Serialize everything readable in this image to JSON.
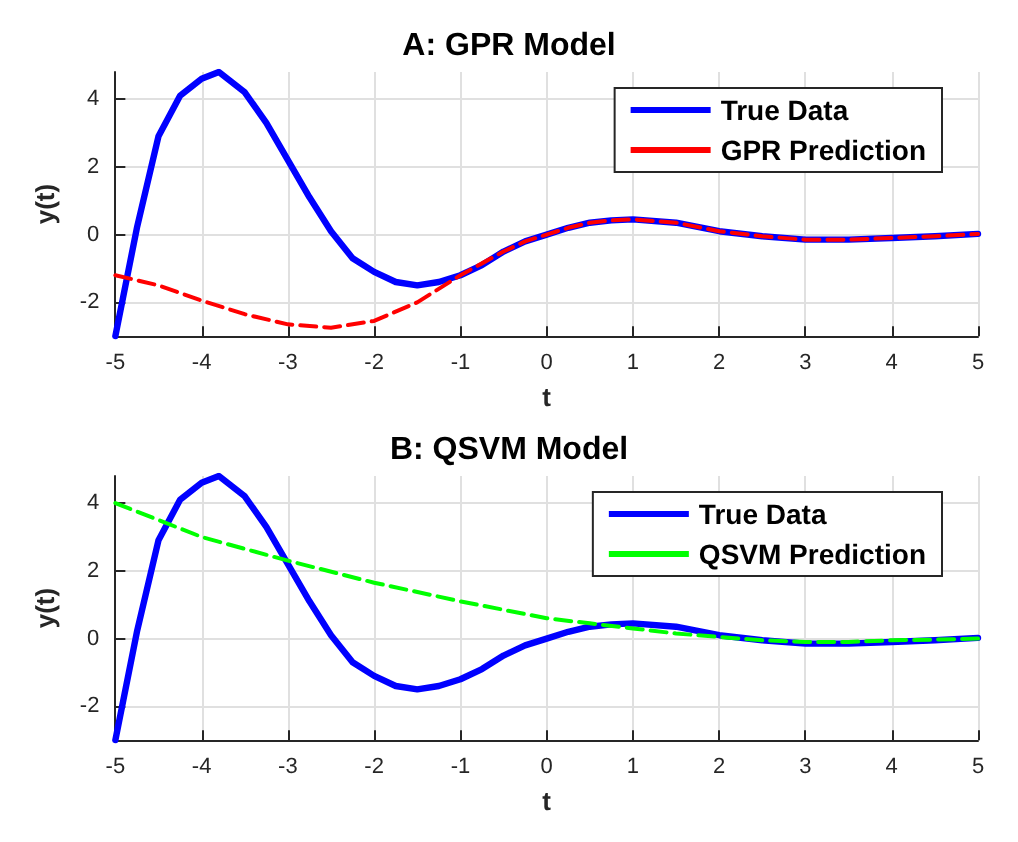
{
  "chart_data": [
    {
      "type": "line",
      "title": "A: GPR Model",
      "xlabel": "t",
      "ylabel": "y(t)",
      "xlim": [
        -5,
        5
      ],
      "ylim": [
        -3,
        4.8
      ],
      "xticks": [
        -5,
        -4,
        -3,
        -2,
        -1,
        0,
        1,
        2,
        3,
        4,
        5
      ],
      "yticks": [
        -2,
        0,
        2,
        4
      ],
      "grid": true,
      "legend": "top right",
      "marker": "none",
      "series": [
        {
          "name": "True Data",
          "color": "#0000ff",
          "line_style": "solid",
          "x": [
            -5,
            -4.75,
            -4.5,
            -4.25,
            -4,
            -3.8,
            -3.5,
            -3.25,
            -3,
            -2.75,
            -2.5,
            -2.25,
            -2,
            -1.75,
            -1.5,
            -1.25,
            -1,
            -0.75,
            -0.5,
            -0.25,
            0,
            0.25,
            0.5,
            0.75,
            1,
            1.5,
            2,
            2.5,
            3,
            3.5,
            4,
            4.5,
            5
          ],
          "values": [
            -3,
            0.2,
            2.9,
            4.1,
            4.6,
            4.8,
            4.2,
            3.3,
            2.2,
            1.1,
            0.1,
            -0.7,
            -1.1,
            -1.4,
            -1.5,
            -1.4,
            -1.2,
            -0.9,
            -0.5,
            -0.2,
            0,
            0.2,
            0.35,
            0.42,
            0.45,
            0.35,
            0.1,
            -0.05,
            -0.15,
            -0.15,
            -0.1,
            -0.05,
            0.02
          ]
        },
        {
          "name": "GPR Prediction",
          "color": "#ff0000",
          "line_style": "dashed",
          "x": [
            -5,
            -4.5,
            -4,
            -3.5,
            -3,
            -2.5,
            -2,
            -1.5,
            -1,
            -0.75,
            -0.5,
            -0.25,
            0,
            0.25,
            0.5,
            0.75,
            1,
            1.5,
            2,
            2.5,
            3,
            3.5,
            4,
            4.5,
            5
          ],
          "values": [
            -1.2,
            -1.5,
            -1.95,
            -2.35,
            -2.65,
            -2.75,
            -2.55,
            -2,
            -1.2,
            -0.85,
            -0.5,
            -0.2,
            0,
            0.2,
            0.35,
            0.42,
            0.45,
            0.35,
            0.1,
            -0.05,
            -0.15,
            -0.15,
            -0.1,
            -0.05,
            0.02
          ]
        }
      ]
    },
    {
      "type": "line",
      "title": "B: QSVM Model",
      "xlabel": "t",
      "ylabel": "y(t)",
      "xlim": [
        -5,
        5
      ],
      "ylim": [
        -3,
        4.8
      ],
      "xticks": [
        -5,
        -4,
        -3,
        -2,
        -1,
        0,
        1,
        2,
        3,
        4,
        5
      ],
      "yticks": [
        -2,
        0,
        2,
        4
      ],
      "grid": true,
      "legend": "top right",
      "marker": "none",
      "series": [
        {
          "name": "True Data",
          "color": "#0000ff",
          "line_style": "solid",
          "x": [
            -5,
            -4.75,
            -4.5,
            -4.25,
            -4,
            -3.8,
            -3.5,
            -3.25,
            -3,
            -2.75,
            -2.5,
            -2.25,
            -2,
            -1.75,
            -1.5,
            -1.25,
            -1,
            -0.75,
            -0.5,
            -0.25,
            0,
            0.25,
            0.5,
            0.75,
            1,
            1.5,
            2,
            2.5,
            3,
            3.5,
            4,
            4.5,
            5
          ],
          "values": [
            -3,
            0.2,
            2.9,
            4.1,
            4.6,
            4.8,
            4.2,
            3.3,
            2.2,
            1.1,
            0.1,
            -0.7,
            -1.1,
            -1.4,
            -1.5,
            -1.4,
            -1.2,
            -0.9,
            -0.5,
            -0.2,
            0,
            0.2,
            0.35,
            0.42,
            0.45,
            0.35,
            0.1,
            -0.05,
            -0.15,
            -0.15,
            -0.1,
            -0.05,
            0.02
          ]
        },
        {
          "name": "QSVM Prediction",
          "color": "#00ff00",
          "line_style": "dashed",
          "x": [
            -5,
            -4,
            -3,
            -2,
            -1,
            0,
            0.5,
            1,
            1.5,
            2,
            2.5,
            3,
            3.5,
            4,
            4.5,
            5
          ],
          "values": [
            4,
            3,
            2.3,
            1.65,
            1.1,
            0.6,
            0.45,
            0.3,
            0.15,
            0.05,
            -0.05,
            -0.1,
            -0.1,
            -0.05,
            -0.03,
            0
          ]
        }
      ]
    }
  ]
}
